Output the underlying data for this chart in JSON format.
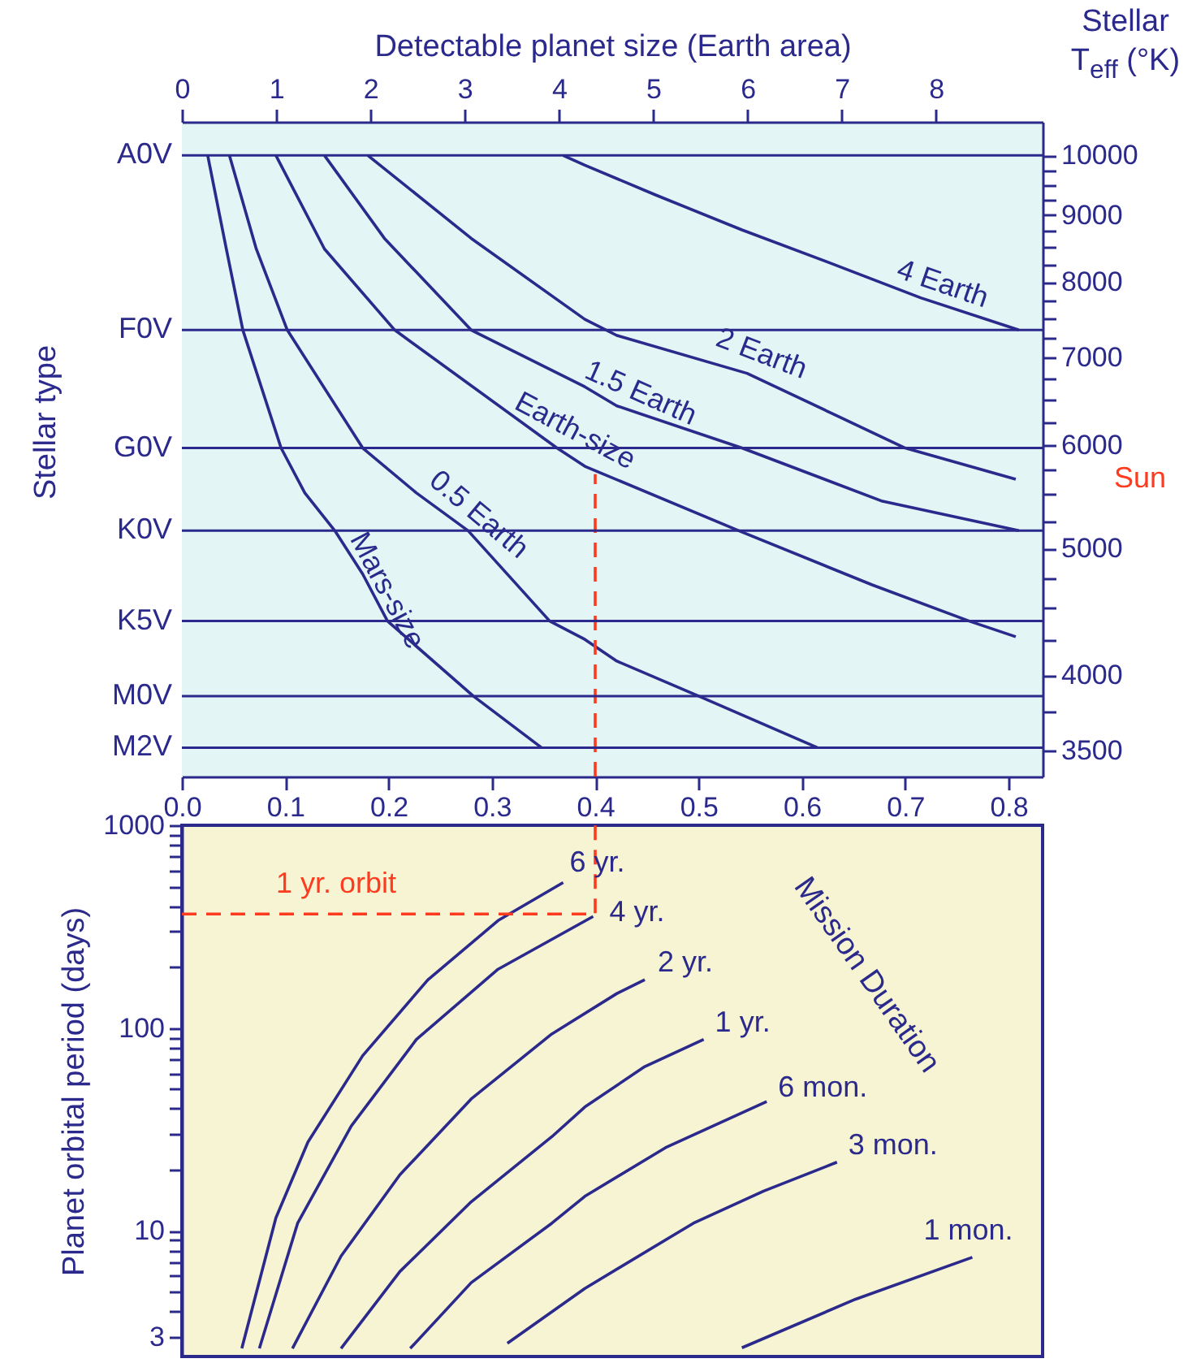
{
  "chart_data": [
    {
      "type": "line",
      "x2label": "Detectable planet size (Earth area)",
      "ylabel": "Stellar T$_{eff}$ (°K)",
      "xlim": [
        0,
        0.833
      ],
      "xticks": [
        {
          "value": 0,
          "label": "0.0"
        },
        0.1,
        0.2,
        0.3,
        0.4,
        0.5,
        0.6,
        0.7,
        0.8
      ],
      "x2lim": [
        0,
        9.13
      ],
      "x2ticks": [
        0,
        1,
        2,
        3,
        4,
        5,
        6,
        7,
        8
      ],
      "ylim": [
        3345,
        10610
      ],
      "yticks": [
        10000,
        {
          "value": 9750,
          "label": null
        },
        {
          "value": 9500,
          "label": null
        },
        {
          "value": 9250,
          "label": null
        },
        9000,
        {
          "value": 8750,
          "label": null
        },
        {
          "value": 8500,
          "label": null
        },
        {
          "value": 8250,
          "label": null
        },
        8000,
        {
          "value": 7750,
          "label": null
        },
        {
          "value": 7500,
          "label": null
        },
        {
          "value": 7250,
          "label": null
        },
        7000,
        {
          "value": 6750,
          "label": null
        },
        {
          "value": 6500,
          "label": null
        },
        {
          "value": 6250,
          "label": null
        },
        6000,
        {
          "value": 5750,
          "label": null
        },
        {
          "value": 5500,
          "label": null
        },
        {
          "value": 5250,
          "label": null
        },
        5000,
        {
          "value": 4750,
          "label": null
        },
        {
          "value": 4500,
          "label": null
        },
        {
          "value": 4250,
          "label": null
        },
        4000,
        {
          "value": 3750,
          "label": null
        },
        3500
      ],
      "log": true,
      "ref_lines": [
        {
          "axis": "y",
          "value": 10000,
          "label": "A0V"
        },
        {
          "axis": "y",
          "value": 7350,
          "label": "F0V"
        },
        {
          "axis": "y",
          "value": 5970,
          "label": "G0V"
        },
        {
          "axis": "y",
          "value": 5160,
          "label": "K0V"
        },
        {
          "axis": "y",
          "value": 4400,
          "label": "K5V"
        },
        {
          "axis": "y",
          "value": 3855,
          "label": "M0V"
        },
        {
          "axis": "y",
          "value": 3520,
          "label": "M2V"
        }
      ],
      "series": [
        {
          "name": "Mars-size",
          "color": "#2b2a8c",
          "x": [
            0.025,
            0.043,
            0.059,
            0.096,
            0.119,
            0.148,
            0.175,
            0.199,
            0.282,
            0.348
          ],
          "values": [
            10000,
            8480,
            7350,
            5970,
            5515,
            5160,
            4780,
            4400,
            3855,
            3520
          ]
        },
        {
          "name": "0.5 Earth",
          "color": "#2b2a8c",
          "x": [
            0.046,
            0.072,
            0.102,
            0.175,
            0.227,
            0.277,
            0.356,
            0.39,
            0.421,
            0.5,
            0.615
          ],
          "values": [
            10000,
            8480,
            7350,
            5970,
            5515,
            5160,
            4400,
            4260,
            4100,
            3855,
            3520
          ]
        },
        {
          "name": "Earth-size",
          "color": "#2b2a8c",
          "x": [
            0.091,
            0.138,
            0.206,
            0.363,
            0.39,
            0.539,
            0.668,
            0.762,
            0.807
          ],
          "values": [
            10000,
            8480,
            7350,
            5970,
            5780,
            5160,
            4690,
            4400,
            4280
          ]
        },
        {
          "name": "1.5 Earth",
          "color": "#2b2a8c",
          "x": [
            0.138,
            0.196,
            0.28,
            0.39,
            0.421,
            0.542,
            0.678,
            0.81
          ],
          "values": [
            10000,
            8640,
            7350,
            6650,
            6430,
            5970,
            5435,
            5160
          ]
        },
        {
          "name": "2 Earth",
          "color": "#2b2a8c",
          "x": [
            0.18,
            0.28,
            0.39,
            0.421,
            0.547,
            0.7,
            0.807
          ],
          "values": [
            10000,
            8640,
            7490,
            7280,
            6810,
            5970,
            5650
          ]
        },
        {
          "name": "4 Earth",
          "color": "#2b2a8c",
          "x": [
            0.369,
            0.39,
            0.458,
            0.542,
            0.626,
            0.715,
            0.81
          ],
          "values": [
            10000,
            9830,
            9330,
            8770,
            8280,
            7780,
            7350
          ]
        },
        {
          "color": "#ff3b1f",
          "line_style": "dashed",
          "x": [
            0.4,
            0.4
          ],
          "values": [
            3345,
            5700
          ]
        }
      ],
      "annotations": [
        "Sun",
        "Stellar type"
      ]
    },
    {
      "type": "line",
      "ylabel": "Planet orbital period  (days)",
      "xlim": [
        0,
        0.833
      ],
      "ylim": [
        2.4,
        1000
      ],
      "yticks": [
        1000,
        {
          "value": 900,
          "label": null
        },
        {
          "value": 800,
          "label": null
        },
        {
          "value": 700,
          "label": null
        },
        {
          "value": 600,
          "label": null
        },
        {
          "value": 500,
          "label": null
        },
        {
          "value": 400,
          "label": null
        },
        {
          "value": 300,
          "label": null
        },
        {
          "value": 200,
          "label": null
        },
        100,
        {
          "value": 90,
          "label": null
        },
        {
          "value": 80,
          "label": null
        },
        {
          "value": 70,
          "label": null
        },
        {
          "value": 60,
          "label": null
        },
        {
          "value": 50,
          "label": null
        },
        {
          "value": 40,
          "label": null
        },
        {
          "value": 30,
          "label": null
        },
        {
          "value": 20,
          "label": null
        },
        10,
        {
          "value": 9,
          "label": null
        },
        {
          "value": 8,
          "label": null
        },
        {
          "value": 7,
          "label": null
        },
        {
          "value": 6,
          "label": null
        },
        {
          "value": 5,
          "label": null
        },
        {
          "value": 4,
          "label": null
        },
        3
      ],
      "log": true,
      "tick_labels": "y",
      "series": [
        {
          "name": "6 yr.",
          "color": "#2b2a8c",
          "x": [
            0.058,
            0.091,
            0.122,
            0.175,
            0.238,
            0.306,
            0.369
          ],
          "values": [
            2.63,
            11.6,
            27.4,
            73.1,
            172.7,
            339,
            521.6
          ]
        },
        {
          "name": "4 yr.",
          "color": "#2b2a8c",
          "x": [
            0.075,
            0.112,
            0.164,
            0.227,
            0.306,
            0.398
          ],
          "values": [
            2.63,
            10.9,
            32.9,
            87.9,
            195,
            355
          ]
        },
        {
          "name": "2 yr.",
          "color": "#2b2a8c",
          "x": [
            0.107,
            0.154,
            0.211,
            0.28,
            0.358,
            0.421,
            0.448
          ],
          "values": [
            2.63,
            7.5,
            18.9,
            44.7,
            93.5,
            148,
            173
          ]
        },
        {
          "name": "1 yr.",
          "color": "#2b2a8c",
          "x": [
            0.154,
            0.211,
            0.28,
            0.358,
            0.39,
            0.448,
            0.505
          ],
          "values": [
            2.63,
            6.3,
            13.9,
            29.1,
            40.8,
            64.6,
            87.9
          ]
        },
        {
          "name": "6 mon.",
          "color": "#2b2a8c",
          "x": [
            0.221,
            0.28,
            0.358,
            0.39,
            0.468,
            0.566
          ],
          "values": [
            2.63,
            5.55,
            10.9,
            14.8,
            25.7,
            43.4
          ]
        },
        {
          "name": "3 mon.",
          "color": "#2b2a8c",
          "x": [
            0.315,
            0.39,
            0.495,
            0.563,
            0.634
          ],
          "values": [
            2.79,
            5.2,
            10.9,
            15.7,
            21.8
          ]
        },
        {
          "name": "1 mon.",
          "color": "#2b2a8c",
          "x": [
            0.542,
            0.652,
            0.765
          ],
          "values": [
            2.65,
            4.6,
            7.4
          ]
        },
        {
          "name": "1 yr. orbit",
          "color": "#ff3b1f",
          "line_style": "dashed",
          "x": [
            0,
            0.4,
            0.4
          ],
          "values": [
            365,
            365,
            1000
          ]
        }
      ],
      "annotations": [
        "Mission Duration"
      ]
    }
  ]
}
